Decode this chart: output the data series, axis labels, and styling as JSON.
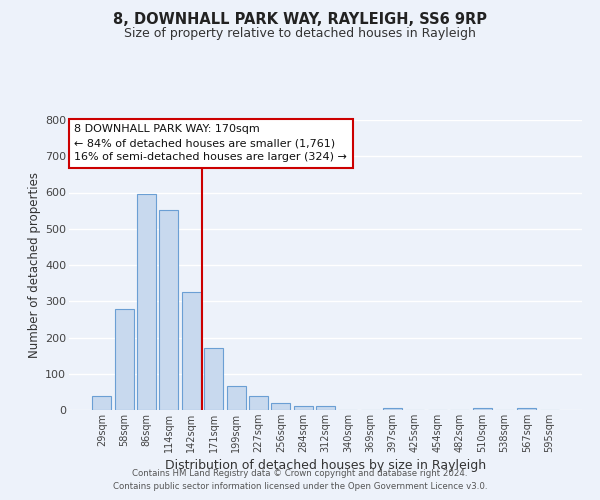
{
  "title": "8, DOWNHALL PARK WAY, RAYLEIGH, SS6 9RP",
  "subtitle": "Size of property relative to detached houses in Rayleigh",
  "xlabel": "Distribution of detached houses by size in Rayleigh",
  "ylabel": "Number of detached properties",
  "categories": [
    "29sqm",
    "58sqm",
    "86sqm",
    "114sqm",
    "142sqm",
    "171sqm",
    "199sqm",
    "227sqm",
    "256sqm",
    "284sqm",
    "312sqm",
    "340sqm",
    "369sqm",
    "397sqm",
    "425sqm",
    "454sqm",
    "482sqm",
    "510sqm",
    "538sqm",
    "567sqm",
    "595sqm"
  ],
  "values": [
    38,
    278,
    596,
    553,
    326,
    170,
    65,
    38,
    20,
    12,
    10,
    0,
    0,
    5,
    0,
    0,
    0,
    5,
    0,
    5,
    0
  ],
  "bar_color": "#c8d9ee",
  "bar_edge_color": "#6b9fd4",
  "background_color": "#edf2fa",
  "grid_color": "#ffffff",
  "vline_color": "#cc0000",
  "annotation_text": "8 DOWNHALL PARK WAY: 170sqm\n← 84% of detached houses are smaller (1,761)\n16% of semi-detached houses are larger (324) →",
  "annotation_box_color": "#ffffff",
  "annotation_box_edge": "#cc0000",
  "ylim": [
    0,
    800
  ],
  "yticks": [
    0,
    100,
    200,
    300,
    400,
    500,
    600,
    700,
    800
  ],
  "footer1": "Contains HM Land Registry data © Crown copyright and database right 2024.",
  "footer2": "Contains public sector information licensed under the Open Government Licence v3.0."
}
